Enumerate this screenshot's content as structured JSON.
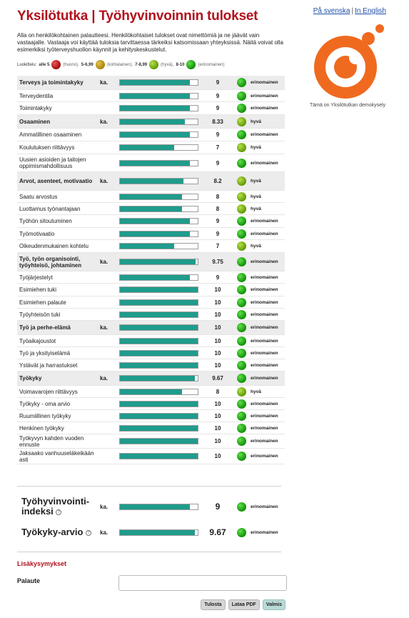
{
  "header": {
    "title": "Yksilötutka | Työhyvinvoinnin tulokset",
    "lang_sv": "På svenska",
    "lang_sep": "|",
    "lang_en": "In English"
  },
  "intro": "Alla on henkilökohtainen palautteesi. Henkilökohtaiset tulokset ovat nimettömiä ja ne jäävät vain vastaajalle. Vastaaja voi käyttää tuloksia tarvittaessa tärkeiksi katsomissaan yhteyksissä. Näitä voivat olla esimerkiksi työterveyshuollon käynnit ja kehityskeskustelut.",
  "legend": {
    "prefix": "Luokittelu:",
    "items": [
      {
        "range": "alle 5",
        "label": "(huono),",
        "color": "#b31313"
      },
      {
        "range": "5-6,99",
        "label": "(kohtalainen),",
        "color": "#c49a14"
      },
      {
        "range": "7-8,99",
        "label": "(hyvä),",
        "color": "#7cbf0f"
      },
      {
        "range": "8-10",
        "label": "(erinomainen)",
        "color": "#26b80f"
      }
    ]
  },
  "demo_note": "Tämä on Yksilötutkan demokysely",
  "colors": {
    "brand_red": "#b1111c",
    "bar_teal": "#1f9c8c",
    "logo_orange": "#ef6a1f"
  },
  "rows": [
    {
      "label": "Terveys ja toimintakyky",
      "group": true,
      "ka": "ka.",
      "score": "9",
      "value": 9,
      "grade": "erinomainen",
      "level": "grn"
    },
    {
      "label": "Terveydentila",
      "group": false,
      "ka": "",
      "score": "9",
      "value": 9,
      "grade": "erinomainen",
      "level": "grn"
    },
    {
      "label": "Toimintakyky",
      "group": false,
      "ka": "",
      "score": "9",
      "value": 9,
      "grade": "erinomainen",
      "level": "grn"
    },
    {
      "label": "Osaaminen",
      "group": true,
      "ka": "ka.",
      "score": "8.33",
      "value": 8.33,
      "grade": "hyvä",
      "level": "lgr"
    },
    {
      "label": "Ammatillinen osaaminen",
      "group": false,
      "ka": "",
      "score": "9",
      "value": 9,
      "grade": "erinomainen",
      "level": "grn"
    },
    {
      "label": "Koulutuksen riittävyys",
      "group": false,
      "ka": "",
      "score": "7",
      "value": 7,
      "grade": "hyvä",
      "level": "lgr"
    },
    {
      "label": "Uusien asioiden ja taitojen oppimismahdollisuus",
      "group": false,
      "ka": "",
      "score": "9",
      "value": 9,
      "grade": "erinomainen",
      "level": "grn"
    },
    {
      "label": "Arvot, asenteet, motivaatio",
      "group": true,
      "ka": "ka.",
      "score": "8.2",
      "value": 8.2,
      "grade": "hyvä",
      "level": "lgr"
    },
    {
      "label": "Saatu arvostus",
      "group": false,
      "ka": "",
      "score": "8",
      "value": 8,
      "grade": "hyvä",
      "level": "lgr"
    },
    {
      "label": "Luottamus työnantajaan",
      "group": false,
      "ka": "",
      "score": "8",
      "value": 8,
      "grade": "hyvä",
      "level": "lgr"
    },
    {
      "label": "Työhön sitoutuminen",
      "group": false,
      "ka": "",
      "score": "9",
      "value": 9,
      "grade": "erinomainen",
      "level": "grn"
    },
    {
      "label": "Työmotivaatio",
      "group": false,
      "ka": "",
      "score": "9",
      "value": 9,
      "grade": "erinomainen",
      "level": "grn"
    },
    {
      "label": "Oikeudenmukainen kohtelu",
      "group": false,
      "ka": "",
      "score": "7",
      "value": 7,
      "grade": "hyvä",
      "level": "lgr"
    },
    {
      "label": "Työ, työn organisointi, työyhteisö, johtaminen",
      "group": true,
      "ka": "ka.",
      "score": "9.75",
      "value": 9.75,
      "grade": "erinomainen",
      "level": "grn"
    },
    {
      "label": "Työjärjestelyt",
      "group": false,
      "ka": "",
      "score": "9",
      "value": 9,
      "grade": "erinomainen",
      "level": "grn"
    },
    {
      "label": "Esimiehen tuki",
      "group": false,
      "ka": "",
      "score": "10",
      "value": 10,
      "grade": "erinomainen",
      "level": "grn"
    },
    {
      "label": "Esimiehen palaute",
      "group": false,
      "ka": "",
      "score": "10",
      "value": 10,
      "grade": "erinomainen",
      "level": "grn"
    },
    {
      "label": "Työyhteisön tuki",
      "group": false,
      "ka": "",
      "score": "10",
      "value": 10,
      "grade": "erinomainen",
      "level": "grn"
    },
    {
      "label": "Työ ja perhe-elämä",
      "group": true,
      "ka": "ka.",
      "score": "10",
      "value": 10,
      "grade": "erinomainen",
      "level": "grn"
    },
    {
      "label": "Työaikajoustot",
      "group": false,
      "ka": "",
      "score": "10",
      "value": 10,
      "grade": "erinomainen",
      "level": "grn"
    },
    {
      "label": "Työ ja yksityiselämä",
      "group": false,
      "ka": "",
      "score": "10",
      "value": 10,
      "grade": "erinomainen",
      "level": "grn"
    },
    {
      "label": "Ystävät ja harrastukset",
      "group": false,
      "ka": "",
      "score": "10",
      "value": 10,
      "grade": "erinomainen",
      "level": "grn"
    },
    {
      "label": "Työkyky",
      "group": true,
      "ka": "ka.",
      "score": "9.67",
      "value": 9.67,
      "grade": "erinomainen",
      "level": "grn"
    },
    {
      "label": "Voimavarojen riittävyys",
      "group": false,
      "ka": "",
      "score": "8",
      "value": 8,
      "grade": "hyvä",
      "level": "lgr"
    },
    {
      "label": "Työkyky - oma arvio",
      "group": false,
      "ka": "",
      "score": "10",
      "value": 10,
      "grade": "erinomainen",
      "level": "grn"
    },
    {
      "label": "Ruumiillinen työkyky",
      "group": false,
      "ka": "",
      "score": "10",
      "value": 10,
      "grade": "erinomainen",
      "level": "grn"
    },
    {
      "label": "Henkinen työkyky",
      "group": false,
      "ka": "",
      "score": "10",
      "value": 10,
      "grade": "erinomainen",
      "level": "grn"
    },
    {
      "label": "Työkyvyn kahden vuoden ennuste",
      "group": false,
      "ka": "",
      "score": "10",
      "value": 10,
      "grade": "erinomainen",
      "level": "grn"
    },
    {
      "label": "Jaksaako vanhuuseläkeikään asti",
      "group": false,
      "ka": "",
      "score": "10",
      "value": 10,
      "grade": "erinomainen",
      "level": "grn"
    }
  ],
  "summary": [
    {
      "label": "Työhyvinvointi-indeksi",
      "ka": "ka.",
      "score": "9",
      "value": 9,
      "grade": "erinomainen",
      "level": "grn"
    },
    {
      "label": "Työkyky-arvio",
      "ka": "ka.",
      "score": "9.67",
      "value": 9.67,
      "grade": "erinomainen",
      "level": "grn"
    }
  ],
  "help_glyph": "?",
  "extra": {
    "title": "Lisäkysymykset",
    "feedback_label": "Palaute",
    "feedback_value": ""
  },
  "buttons": {
    "print": "Tulosta",
    "pdf": "Lataa PDF",
    "done": "Valmis"
  }
}
